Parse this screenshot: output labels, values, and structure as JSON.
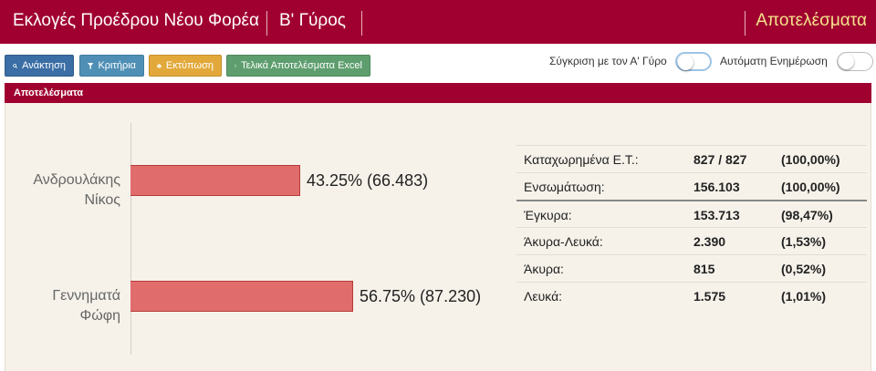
{
  "header": {
    "title": "Εκλογές Προέδρου Νέου Φορέα",
    "round": "Β' Γύρος",
    "results_link": "Αποτελέσματα"
  },
  "toolbar": {
    "refresh_label": "Ανάκτηση",
    "filters_label": "Κριτήρια",
    "print_label": "Εκτύπωση",
    "excel_label": "Τελικά Αποτελέσματα Excel",
    "compare_label": "Σύγκριση με τον Α' Γύρο",
    "compare_on": false,
    "auto_update_label": "Αυτόματη Ενημέρωση",
    "auto_update_on": false
  },
  "panel": {
    "title": "Αποτελέσματα"
  },
  "chart_data": {
    "type": "bar",
    "orientation": "horizontal",
    "categories": [
      "Ανδρουλάκης Νίκος",
      "Γεννηματά Φώφη"
    ],
    "category_lines": [
      [
        "Ανδρουλάκης",
        "Νίκος"
      ],
      [
        "Γεννηματά",
        "Φώφη"
      ]
    ],
    "values": [
      43.25,
      56.75
    ],
    "votes": [
      66483,
      87230
    ],
    "value_labels": [
      "43.25% (66.483)",
      "56.75% (87.230)"
    ],
    "bar_color": "#e06c6c",
    "xlim": [
      0,
      100
    ]
  },
  "stats": [
    {
      "label": "Καταχωρημένα Ε.Τ.:",
      "value": "827 / 827",
      "percent": "(100,00%)"
    },
    {
      "label": "Ενσωμάτωση:",
      "value": "156.103",
      "percent": "(100,00%)"
    },
    {
      "label": "Έγκυρα:",
      "value": "153.713",
      "percent": "(98,47%)"
    },
    {
      "label": "Άκυρα-Λευκά:",
      "value": "2.390",
      "percent": "(1,53%)"
    },
    {
      "label": "Άκυρα:",
      "value": "815",
      "percent": "(0,52%)"
    },
    {
      "label": "Λευκά:",
      "value": "1.575",
      "percent": "(1,01%)"
    }
  ],
  "colors": {
    "brand": "#a00030",
    "results_link": "#f3e28a",
    "panel_bg": "#f6f2ea"
  }
}
